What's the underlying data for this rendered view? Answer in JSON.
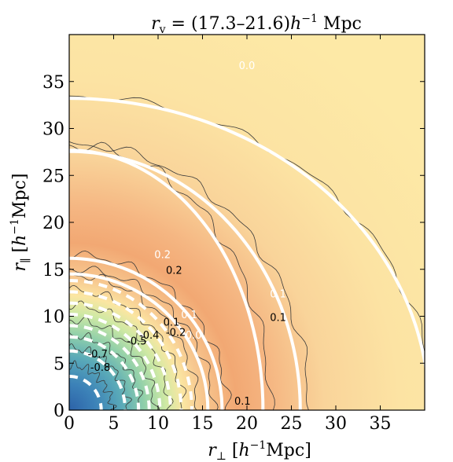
{
  "chart_data": {
    "type": "heatmap",
    "title": "r_v = (17.3–21.6) h⁻¹ Mpc",
    "title_parts": {
      "r": "r",
      "sub": "v",
      "eq": " = (17.3–21.6)",
      "h": "h",
      "sup": "−1",
      "unit": " Mpc"
    },
    "xlabel_parts": {
      "r": "r",
      "sub": "⊥",
      "lb": "  [",
      "h": "h",
      "sup": "−1",
      "unit": "Mpc]"
    },
    "ylabel_parts": {
      "r": "r",
      "sub": "∥",
      "lb": "  [",
      "h": "h",
      "sup": "−1",
      "unit": "Mpc]"
    },
    "xlim": [
      0,
      40
    ],
    "ylim": [
      0,
      40
    ],
    "xticks": [
      0,
      5,
      10,
      15,
      20,
      25,
      30,
      35
    ],
    "yticks": [
      0,
      5,
      10,
      15,
      20,
      25,
      30,
      35
    ],
    "grid": false,
    "colormap": {
      "negative": "#2f6fb0",
      "zero": "#fde7a0",
      "positive": "#ee8a4f"
    },
    "model_contours": {
      "style": "white",
      "levels": [
        {
          "level": "0.0",
          "r": 40.5,
          "q": 0.82,
          "label": "0.0",
          "label_x": 20,
          "label_y": 36.3
        },
        {
          "level": "0.1",
          "r": 26.0,
          "q": 1.06,
          "label": "0.1",
          "label_x": 23.5,
          "label_y": 12.0
        },
        {
          "level": "0.2",
          "r": 21.8,
          "q": 1.27,
          "label": "0.2",
          "label_x": 10.5,
          "label_y": 16.2
        },
        {
          "level": "0.1",
          "r": 17.2,
          "q": 0.94,
          "label": "0.1",
          "label_x": 13.5,
          "label_y": 9.8
        },
        {
          "level": "0.0",
          "r": 15.6,
          "q": 0.93,
          "label": "0.0",
          "label_x": 14.0,
          "label_y": 7.6
        }
      ],
      "negative_levels": [
        {
          "level": "-0.1",
          "r": 13.8
        },
        {
          "level": "-0.2",
          "r": 12.6
        },
        {
          "level": "-0.3",
          "r": 11.4
        },
        {
          "level": "-0.4",
          "r": 10.2
        },
        {
          "level": "-0.5",
          "r": 9.0
        },
        {
          "level": "-0.6",
          "r": 7.8
        },
        {
          "level": "-0.7",
          "r": 6.3
        },
        {
          "level": "-0.8",
          "r": 3.6
        }
      ]
    },
    "data_contours": {
      "style": "black-thin",
      "labels": [
        {
          "text": "0.2",
          "x": 11.8,
          "y": 14.5
        },
        {
          "text": "0.1",
          "x": 23.5,
          "y": 9.5
        },
        {
          "text": "0.1",
          "x": 19.5,
          "y": 0.6
        },
        {
          "text": "0.1",
          "x": 11.5,
          "y": 9.0
        },
        {
          "text": "-0.2",
          "x": 12.0,
          "y": 7.9
        },
        {
          "text": "-0.4",
          "x": 9.0,
          "y": 7.6
        },
        {
          "text": "-0.5",
          "x": 7.6,
          "y": 7.0
        },
        {
          "text": "-0.7",
          "x": 3.2,
          "y": 5.6
        },
        {
          "text": "-0.8",
          "x": 3.5,
          "y": 4.2
        }
      ]
    }
  }
}
